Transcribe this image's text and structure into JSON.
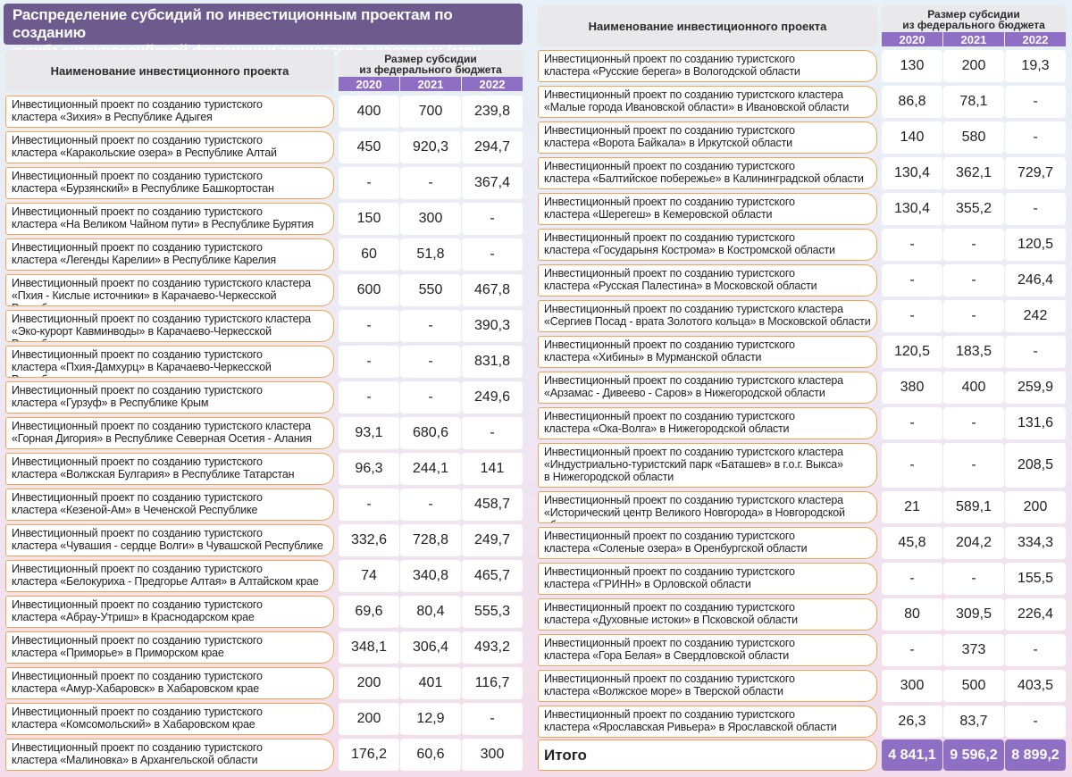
{
  "title": "Распределение субсидий по инвестиционным проектам по созданию\nв субъектахроссийской федерации туристских кластеров (млн. руб.)",
  "header": {
    "name_col": "Наименование инвестиционного проекта",
    "subsidy_col": "Размер субсидии\nиз федерального бюджета",
    "years": [
      "2020",
      "2021",
      "2022"
    ]
  },
  "left_rows": [
    {
      "name": "Инвестиционный проект по созданию туристского\nкластера «Зихия» в Республике Адыгея",
      "v": [
        "400",
        "700",
        "239,8"
      ]
    },
    {
      "name": "Инвестиционный проект по созданию туристского\nкластера «Каракольские озера» в Республике Алтай",
      "v": [
        "450",
        "920,3",
        "294,7"
      ]
    },
    {
      "name": "Инвестиционный проект по созданию туристского\nкластера «Бурзянский» в Республике Башкортостан",
      "v": [
        "-",
        "-",
        "367,4"
      ]
    },
    {
      "name": "Инвестиционный проект по созданию туристского\nкластера «На Великом Чайном пути» в Республике Бурятия",
      "v": [
        "150",
        "300",
        "-"
      ]
    },
    {
      "name": "Инвестиционный проект по созданию туристского\nкластера «Легенды Карелии» в Республике Карелия",
      "v": [
        "60",
        "51,8",
        "-"
      ]
    },
    {
      "name": "Инвестиционный проект по созданию туристского кластера\n«Пхия - Кислые источники» в Карачаево-Черкесской Республике",
      "v": [
        "600",
        "550",
        "467,8"
      ]
    },
    {
      "name": "Инвестиционный проект по созданию туристского кластера\n«Эко-курорт Кавминводы» в Карачаево-Черкесской Республике",
      "v": [
        "-",
        "-",
        "390,3"
      ]
    },
    {
      "name": "Инвестиционный проект по созданию туристского\nкластера «Пхия-Дамхурц» в Карачаево-Черкесской Республике",
      "v": [
        "-",
        "-",
        "831,8"
      ]
    },
    {
      "name": "Инвестиционный проект по созданию туристского\nкластера «Гурзуф» в Республике Крым",
      "v": [
        "-",
        "-",
        "249,6"
      ]
    },
    {
      "name": "Инвестиционный проект по созданию туристского кластера\n«Горная Дигория» в Республике Северная Осетия - Алания",
      "v": [
        "93,1",
        "680,6",
        "-"
      ]
    },
    {
      "name": "Инвестиционный проект по созданию туристского\n кластера «Волжская Булгария» в Республике Татарстан",
      "v": [
        "96,3",
        "244,1",
        "141"
      ]
    },
    {
      "name": "Инвестиционный проект по созданию туристского\nкластера «Кезеной-Ам» в Чеченской Республике",
      "v": [
        "-",
        "-",
        "458,7"
      ]
    },
    {
      "name": "Инвестиционный проект по созданию туристского\nкластера «Чувашия - сердце Волги» в Чувашской Республике",
      "v": [
        "332,6",
        "728,8",
        "249,7"
      ]
    },
    {
      "name": "Инвестиционный проект по созданию туристского\nкластера «Белокуриха - Предгорье Алтая» в Алтайском крае",
      "v": [
        "74",
        "340,8",
        "465,7"
      ]
    },
    {
      "name": "Инвестиционный проект по созданию туристского\nкластера «Абрау-Утриш» в Краснодарском крае",
      "v": [
        "69,6",
        "80,4",
        "555,3"
      ]
    },
    {
      "name": "Инвестиционный проект по созданию туристского\nкластера «Приморье» в Приморском крае",
      "v": [
        "348,1",
        "306,4",
        "493,2"
      ]
    },
    {
      "name": "Инвестиционный проект по созданию туристского\nкластера «Амур-Хабаровск» в Хабаровском крае",
      "v": [
        "200",
        "401",
        "116,7"
      ]
    },
    {
      "name": "Инвестиционный проект по созданию туристского\nкластера «Комсомольский» в Хабаровском крае",
      "v": [
        "200",
        "12,9",
        "-"
      ]
    },
    {
      "name": "Инвестиционный проект по созданию туристского\nкластера «Малиновка» в Архангельской области",
      "v": [
        "176,2",
        "60,6",
        "300"
      ]
    }
  ],
  "right_rows": [
    {
      "name": "Инвестиционный проект по созданию туристского\nкластера «Русские берега» в Вологодской области",
      "v": [
        "130",
        "200",
        "19,3"
      ]
    },
    {
      "name": "Инвестиционный проект по созданию туристского кластера\n«Малые города Ивановской области» в Ивановской области",
      "v": [
        "86,8",
        "78,1",
        "-"
      ]
    },
    {
      "name": "Инвестиционный проект по созданию туристского\n кластера «Ворота Байкала» в Иркутской области",
      "v": [
        "140",
        "580",
        "-"
      ]
    },
    {
      "name": "Инвестиционный проект по созданию туристского\nкластера «Балтийское побережье» в Калининградской области",
      "v": [
        "130,4",
        "362,1",
        "729,7"
      ]
    },
    {
      "name": "Инвестиционный проект по созданию туристского\nкластера «Шерегеш» в Кемеровской области",
      "v": [
        "130,4",
        "355,2",
        "-"
      ]
    },
    {
      "name": "Инвестиционный проект по созданию туристского\nкластера «Государыня Кострома» в Костромской области",
      "v": [
        "-",
        "-",
        "120,5"
      ]
    },
    {
      "name": "Инвестиционный проект по созданию туристского\nкластера «Русская Палестина» в Московской области",
      "v": [
        "-",
        "-",
        "246,4"
      ]
    },
    {
      "name": "Инвестиционный проект по созданию туристского кластера\n«Сергиев Посад - врата Золотого кольца» в Московской области",
      "v": [
        "-",
        "-",
        "242"
      ]
    },
    {
      "name": "Инвестиционный проект по созданию туристского\nкластера «Хибины» в Мурманской области",
      "v": [
        "120,5",
        "183,5",
        "-"
      ]
    },
    {
      "name": "Инвестиционный проект по созданию туристского кластера\n«Арзамас - Дивеево - Саров» в Нижегородской области",
      "v": [
        "380",
        "400",
        "259,9"
      ]
    },
    {
      "name": "Инвестиционный проект по созданию туристского\nкластера «Ока-Волга» в Нижегородской области",
      "v": [
        "-",
        "-",
        "131,6"
      ]
    },
    {
      "name": "Инвестиционный проект по созданию туристского кластера\n«Индустриально-туристский парк «Баташев» в г.о.г. Выкса»\nв Нижегородской области",
      "v": [
        "-",
        "-",
        "208,5"
      ]
    },
    {
      "name": "Инвестиционный проект по созданию туристского кластера\n«Исторический центр Великого Новгорода» в Новгородской области",
      "v": [
        "21",
        "589,1",
        "200"
      ]
    },
    {
      "name": "Инвестиционный проект по созданию туристского\n кластера «Соленые озера» в Оренбургской области",
      "v": [
        "45,8",
        "204,2",
        "334,3"
      ]
    },
    {
      "name": "Инвестиционный проект по созданию туристского\nкластера «ГРИНН» в Орловской области",
      "v": [
        "-",
        "-",
        "155,5"
      ]
    },
    {
      "name": "Инвестиционный проект по созданию туристского\n кластера «Духовные истоки» в Псковской области",
      "v": [
        "80",
        "309,5",
        "226,4"
      ]
    },
    {
      "name": "Инвестиционный проект по созданию туристского\nкластера «Гора Белая» в Свердловской области",
      "v": [
        "-",
        "373",
        "-"
      ]
    },
    {
      "name": "Инвестиционный проект по созданию туристского\nкластера «Волжское море» в Тверской области",
      "v": [
        "300",
        "500",
        "403,5"
      ]
    },
    {
      "name": "Инвестиционный проект по созданию туристского\nкластера «Ярославская Ривьера» в Ярославской области",
      "v": [
        "26,3",
        "83,7",
        "-"
      ]
    }
  ],
  "total": {
    "label": "Итого",
    "v": [
      "4 841,1",
      "9 596,2",
      "8 899,2"
    ]
  }
}
